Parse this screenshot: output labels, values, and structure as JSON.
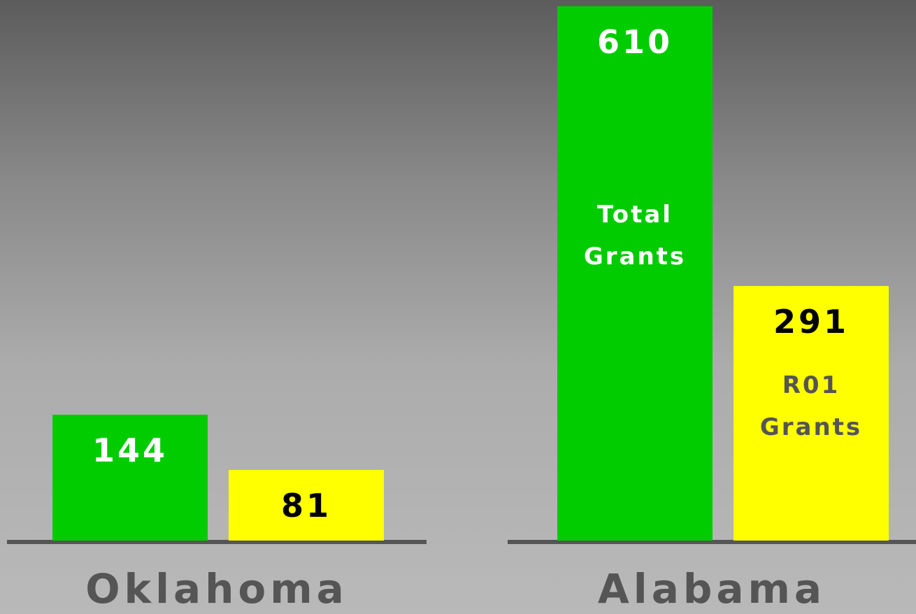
{
  "chart_data": {
    "type": "bar",
    "categories": [
      "Oklahoma",
      "Alabama"
    ],
    "series": [
      {
        "name": "Total Grants",
        "color": "#00cc00",
        "values": [
          144,
          610
        ]
      },
      {
        "name": "R01 Grants",
        "color": "#ffff00",
        "values": [
          81,
          291
        ]
      }
    ]
  }
}
